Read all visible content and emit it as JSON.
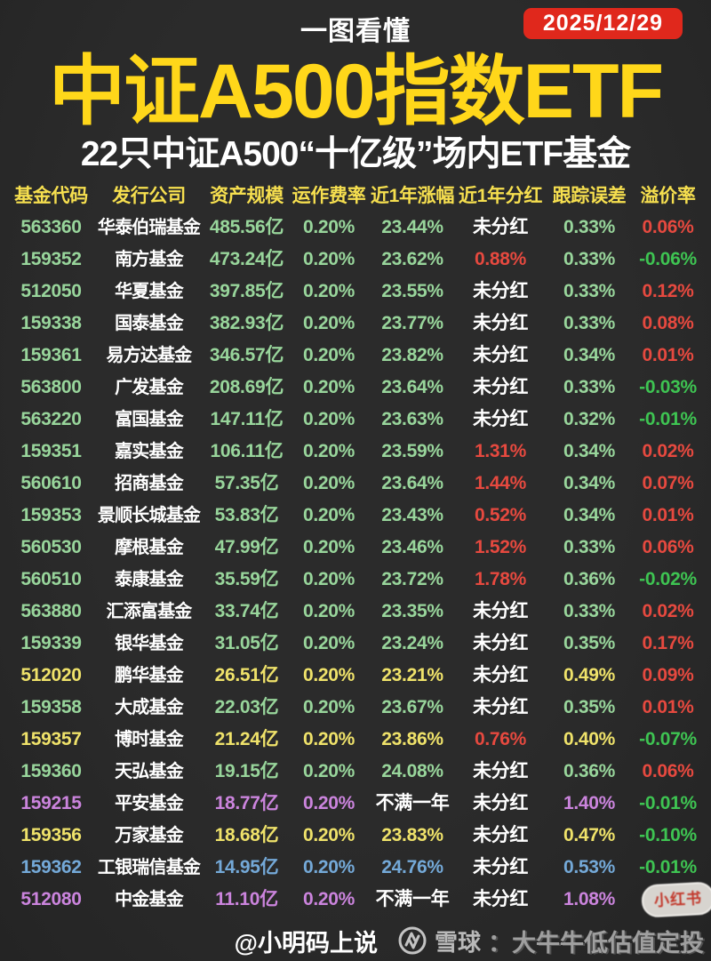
{
  "meta": {
    "tagline": "一图看懂",
    "date": "2025/12/29"
  },
  "title": "中证A500指数ETF",
  "subtitle": "22只中证A500“十亿级”场内ETF基金",
  "chart_data": {
    "type": "table",
    "title": "中证A500指数ETF",
    "subtitle": "22只中证A500“十亿级”场内ETF基金",
    "date": "2025/12/29",
    "columns": [
      "基金代码",
      "发行公司",
      "资产规模",
      "运作费率",
      "近1年涨幅",
      "近1年分红",
      "跟踪误差",
      "溢价率"
    ],
    "rows": [
      [
        "563360",
        "华泰伯瑞基金",
        "485.56亿",
        "0.20%",
        "23.44%",
        "未分红",
        "0.33%",
        "0.06%"
      ],
      [
        "159352",
        "南方基金",
        "473.24亿",
        "0.20%",
        "23.62%",
        "0.88%",
        "0.33%",
        "-0.06%"
      ],
      [
        "512050",
        "华夏基金",
        "397.85亿",
        "0.20%",
        "23.55%",
        "未分红",
        "0.33%",
        "0.12%"
      ],
      [
        "159338",
        "国泰基金",
        "382.93亿",
        "0.20%",
        "23.77%",
        "未分红",
        "0.33%",
        "0.08%"
      ],
      [
        "159361",
        "易方达基金",
        "346.57亿",
        "0.20%",
        "23.82%",
        "未分红",
        "0.34%",
        "0.01%"
      ],
      [
        "563800",
        "广发基金",
        "208.69亿",
        "0.20%",
        "23.64%",
        "未分红",
        "0.33%",
        "-0.03%"
      ],
      [
        "563220",
        "富国基金",
        "147.11亿",
        "0.20%",
        "23.63%",
        "未分红",
        "0.32%",
        "-0.01%"
      ],
      [
        "159351",
        "嘉实基金",
        "106.11亿",
        "0.20%",
        "23.59%",
        "1.31%",
        "0.34%",
        "0.02%"
      ],
      [
        "560610",
        "招商基金",
        "57.35亿",
        "0.20%",
        "23.64%",
        "1.44%",
        "0.34%",
        "0.07%"
      ],
      [
        "159353",
        "景顺长城基金",
        "53.83亿",
        "0.20%",
        "23.43%",
        "0.52%",
        "0.34%",
        "0.01%"
      ],
      [
        "560530",
        "摩根基金",
        "47.99亿",
        "0.20%",
        "23.46%",
        "1.52%",
        "0.33%",
        "0.06%"
      ],
      [
        "560510",
        "泰康基金",
        "35.59亿",
        "0.20%",
        "23.72%",
        "1.78%",
        "0.36%",
        "-0.02%"
      ],
      [
        "563880",
        "汇添富基金",
        "33.74亿",
        "0.20%",
        "23.35%",
        "未分红",
        "0.33%",
        "0.02%"
      ],
      [
        "159339",
        "银华基金",
        "31.05亿",
        "0.20%",
        "23.24%",
        "未分红",
        "0.35%",
        "0.17%"
      ],
      [
        "512020",
        "鹏华基金",
        "26.51亿",
        "0.20%",
        "23.21%",
        "未分红",
        "0.49%",
        "0.09%"
      ],
      [
        "159358",
        "大成基金",
        "22.03亿",
        "0.20%",
        "23.67%",
        "未分红",
        "0.35%",
        "0.01%"
      ],
      [
        "159357",
        "博时基金",
        "21.24亿",
        "0.20%",
        "23.86%",
        "0.76%",
        "0.40%",
        "-0.07%"
      ],
      [
        "159360",
        "天弘基金",
        "19.15亿",
        "0.20%",
        "24.08%",
        "未分红",
        "0.36%",
        "0.06%"
      ],
      [
        "159215",
        "平安基金",
        "18.77亿",
        "0.20%",
        "不满一年",
        "未分红",
        "1.40%",
        "-0.01%"
      ],
      [
        "159356",
        "万家基金",
        "18.68亿",
        "0.20%",
        "23.83%",
        "未分红",
        "0.47%",
        "-0.10%"
      ],
      [
        "159362",
        "工银瑞信基金",
        "14.95亿",
        "0.20%",
        "24.76%",
        "未分红",
        "0.53%",
        "-0.01%"
      ],
      [
        "512080",
        "中金基金",
        "11.10亿",
        "0.20%",
        "不满一年",
        "未分红",
        "1.08%",
        ""
      ]
    ]
  },
  "table": {
    "cell_colors": [
      [
        "green",
        "white",
        "green",
        "green",
        "green",
        "white",
        "green",
        "red"
      ],
      [
        "green",
        "white",
        "green",
        "green",
        "green",
        "red",
        "green",
        "vivid"
      ],
      [
        "green",
        "white",
        "green",
        "green",
        "green",
        "white",
        "green",
        "red"
      ],
      [
        "green",
        "white",
        "green",
        "green",
        "green",
        "white",
        "green",
        "red"
      ],
      [
        "green",
        "white",
        "green",
        "green",
        "green",
        "white",
        "green",
        "red"
      ],
      [
        "green",
        "white",
        "green",
        "green",
        "green",
        "white",
        "green",
        "vivid"
      ],
      [
        "green",
        "white",
        "green",
        "green",
        "green",
        "white",
        "green",
        "vivid"
      ],
      [
        "green",
        "white",
        "green",
        "green",
        "green",
        "red",
        "green",
        "red"
      ],
      [
        "green",
        "white",
        "green",
        "green",
        "green",
        "red",
        "green",
        "red"
      ],
      [
        "green",
        "white",
        "green",
        "green",
        "green",
        "red",
        "green",
        "red"
      ],
      [
        "green",
        "white",
        "green",
        "green",
        "green",
        "red",
        "green",
        "red"
      ],
      [
        "green",
        "white",
        "green",
        "green",
        "green",
        "red",
        "green",
        "vivid"
      ],
      [
        "green",
        "white",
        "green",
        "green",
        "green",
        "white",
        "green",
        "red"
      ],
      [
        "green",
        "white",
        "green",
        "green",
        "green",
        "white",
        "green",
        "red"
      ],
      [
        "yellow",
        "white",
        "yellow",
        "yellow",
        "yellow",
        "white",
        "yellow",
        "red"
      ],
      [
        "green",
        "white",
        "green",
        "green",
        "green",
        "white",
        "green",
        "red"
      ],
      [
        "yellow",
        "white",
        "yellow",
        "yellow",
        "yellow",
        "red",
        "yellow",
        "vivid"
      ],
      [
        "green",
        "white",
        "green",
        "green",
        "green",
        "white",
        "green",
        "red"
      ],
      [
        "purple",
        "white",
        "purple",
        "purple",
        "white",
        "white",
        "purple",
        "vivid"
      ],
      [
        "yellow",
        "white",
        "yellow",
        "yellow",
        "yellow",
        "white",
        "yellow",
        "vivid"
      ],
      [
        "blue",
        "white",
        "blue",
        "blue",
        "blue",
        "white",
        "blue",
        "vivid"
      ],
      [
        "purple",
        "white",
        "purple",
        "purple",
        "white",
        "white",
        "purple",
        "white"
      ]
    ],
    "badge_row": 21,
    "badge_column": 7,
    "badge_label": "小红书"
  },
  "footer": {
    "author": "@小明码上说",
    "platform": "雪球",
    "watermark": "：大牛牛低估值定投"
  },
  "colors": {
    "background": "#2b2b2b",
    "title_yellow": "#ffd71a",
    "header_yellow": "#f6df4f",
    "accent_green": "#98d59b",
    "vivid_green": "#3ec452",
    "red": "#e6493f",
    "yellow": "#efe26a",
    "purple": "#cb84dd",
    "blue": "#74a9d8",
    "badge_red": "#e0281c"
  }
}
